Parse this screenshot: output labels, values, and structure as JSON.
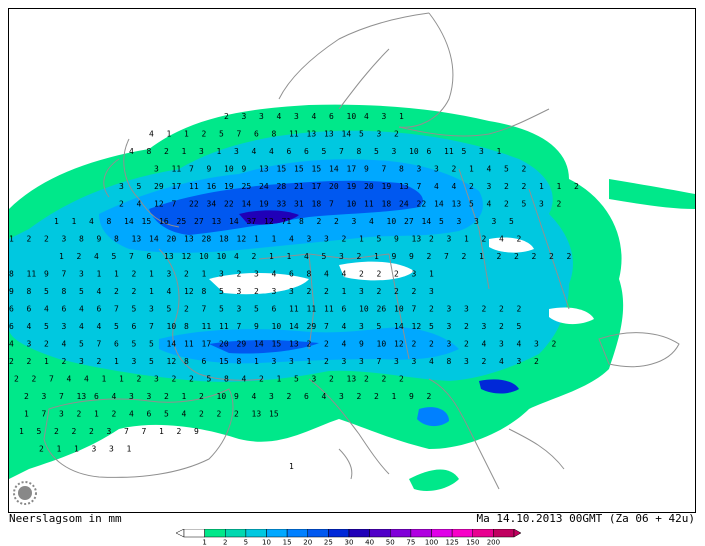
{
  "footer": {
    "left_label": "Neerslagsom in mm",
    "right_label": "Ma 14.10.2013 00GMT (Za 06 + 42u)"
  },
  "legend": {
    "colors": [
      "#ffffff",
      "#00e88a",
      "#00d8b0",
      "#00c8e0",
      "#00a8ff",
      "#0080ff",
      "#0058f0",
      "#0028d8",
      "#2000b8",
      "#5000c8",
      "#8000d8",
      "#b000e0",
      "#e000e8",
      "#f800c8",
      "#e80090",
      "#c00060"
    ],
    "labels": [
      "1",
      "2",
      "5",
      "10",
      "15",
      "20",
      "25",
      "30",
      "40",
      "50",
      "75",
      "100",
      "125",
      "150",
      "200"
    ]
  },
  "grid_values": [
    {
      "row": 0,
      "vals": "2 3 3 4 3 4 6 10 4 3 1"
    },
    {
      "row": 1,
      "vals": "4 1 1 2 5 7 6 8 11 13 13 14 5 3 2"
    },
    {
      "row": 2,
      "vals": "4 8 2 1 3 1 3 4 4 6 6 5 7 8 5 3 10 6 11 5 3 1"
    },
    {
      "row": 3,
      "vals": "3 11 7 9 10 9 13 15 15 15 14 17 9 7 8 3 3 2 1 4 5 2"
    },
    {
      "row": 4,
      "vals": "3 5 29 17 11 16 19 25 24 28 21 17 20 19 20 19 13 7 4 4 2 3 2 2 1 1 2"
    },
    {
      "row": 5,
      "vals": "2 4 12 7 22 34 22 14 19 33 31 18 7 10 11 18 24 22 14 13 5 4 2 5 3 2"
    },
    {
      "row": 6,
      "vals": "1 1 4 8 14 15 16 25 27 13 14 37 12 71 8 2 2 3 4 10 27 14 5 3 3 3 5"
    },
    {
      "row": 7,
      "vals": "1 2 2 3 8 9 8 13 14 20 13 28 18 12 1 1 4 3 3 2 1 5 9 13 2 3 1 2 4 2"
    },
    {
      "row": 8,
      "vals": "1 2 4 5 7 6 13 12 10 10 4 2 1 1 4 5 3 2 1 9 9 2 7 2 1 2 2 2 2 2"
    },
    {
      "row": 9,
      "vals": "8 11 9 7 3 1 1 2 1 3 2 1 3 2 3 4 6 8 4 4 2 2 2 3 1"
    },
    {
      "row": 10,
      "vals": "9 8 5 8 5 4 2 2 1 4 12 8 5 3 2 3 3 2 2 1 3 2 2 2 3"
    },
    {
      "row": 11,
      "vals": "6 6 4 6 4 6 7 5 3 5 2 7 5 3 5 6 11 11 11 6 10 26 10 7 2 3 3 2 2 2"
    },
    {
      "row": 12,
      "vals": "6 4 5 3 4 4 5 6 7 10 8 11 11 7 9 10 14 29 7 4 3 5 14 12 5 3 2 3 2 5"
    },
    {
      "row": 13,
      "vals": "4 3 2 4 5 7 6 5 5 14 11 17 20 29 14 15 13 2 2 4 9 10 12 2 2 3 2 4 3 4 3 2"
    },
    {
      "row": 14,
      "vals": "2 2 1 2 3 2 1 3 5 12 8 6 15 8 1 3 3 1 2 3 3 7 3 3 4 8 3 2 4 3 2"
    },
    {
      "row": 15,
      "vals": "2 2 7 4 4 1 1 2 3 2 2 5 8 4 2 1 5 3 2 13 2 2 2"
    },
    {
      "row": 16,
      "vals": "2 3 7 13 6 4 3 3 2 1 2 10 9 4 3 2 6 4 3 2 2 1 9 2"
    },
    {
      "row": 17,
      "vals": "1 7 3 2 1 2 4 6 5 4 2 2 2 13 15"
    },
    {
      "row": 18,
      "vals": "1 5 2 2 2 3 7 7 1 2 9"
    },
    {
      "row": 19,
      "vals": "2 1 1 3 3 1"
    },
    {
      "row": 20,
      "vals": "1"
    }
  ]
}
